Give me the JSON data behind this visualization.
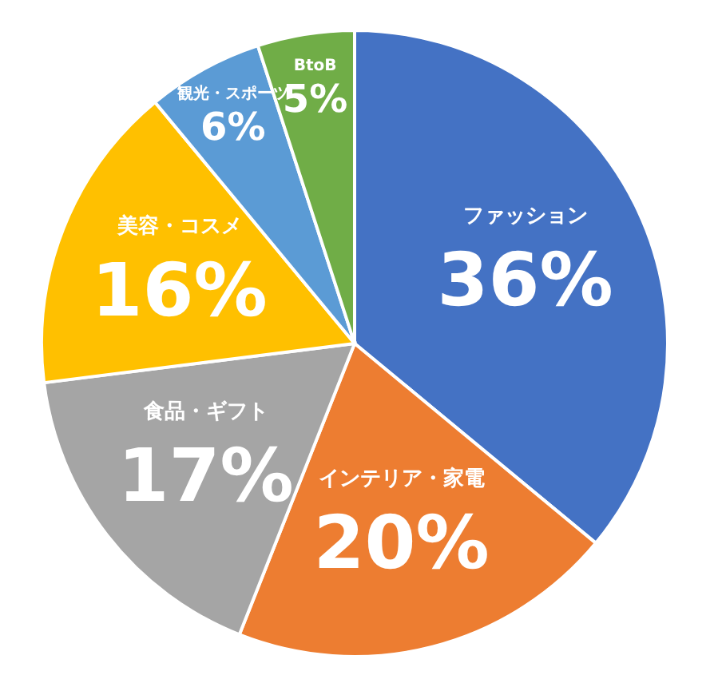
{
  "chart_data": {
    "type": "pie",
    "categories": [
      "ファッション",
      "インテリア・家電",
      "食品・ギフト",
      "美容・コスメ",
      "観光・スポーツ",
      "BtoB"
    ],
    "values": [
      36,
      20,
      17,
      16,
      6,
      5
    ],
    "colors": [
      "#4472c4",
      "#ed7d31",
      "#a5a5a5",
      "#ffc000",
      "#5b9bd5",
      "#70ad47"
    ],
    "value_labels": [
      "36%",
      "20%",
      "17%",
      "16%",
      "6%",
      "5%"
    ],
    "legend": false
  }
}
